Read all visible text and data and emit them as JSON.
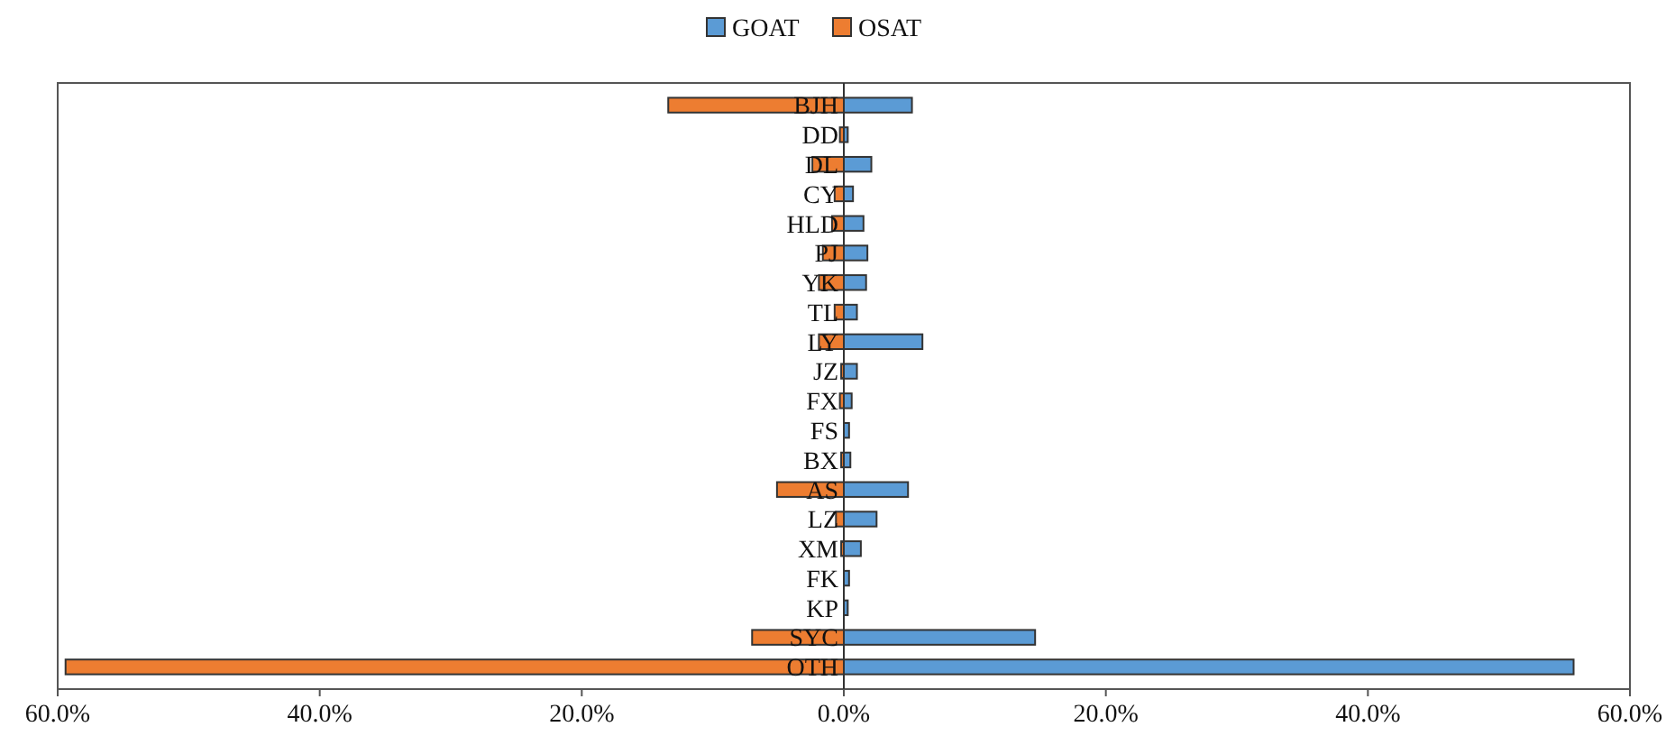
{
  "chart_data": {
    "type": "bar",
    "orientation": "horizontal",
    "categories": [
      "BJH",
      "DD",
      "DL",
      "CY",
      "HLD",
      "PJ",
      "YK",
      "TL",
      "LY",
      "JZ",
      "FX",
      "FS",
      "BX",
      "AS",
      "LZ",
      "XM",
      "FK",
      "KP",
      "SYC",
      "OTH"
    ],
    "series": [
      {
        "name": "GOAT",
        "color": "#5b9bd5",
        "values": [
          5.2,
          0.3,
          2.1,
          0.7,
          1.5,
          1.8,
          1.7,
          1.0,
          6.0,
          1.0,
          0.6,
          0.4,
          0.5,
          4.9,
          2.5,
          1.3,
          0.4,
          0.3,
          14.6,
          55.7
        ]
      },
      {
        "name": "OSAT",
        "color": "#ed7d31",
        "values": [
          -13.4,
          -0.3,
          -2.4,
          -0.7,
          -0.9,
          -1.6,
          -1.9,
          -0.7,
          -1.9,
          -0.2,
          -0.3,
          null,
          -0.2,
          -5.1,
          -0.6,
          -0.2,
          null,
          null,
          -7.0,
          -59.4
        ]
      }
    ],
    "xlim": [
      -60,
      60
    ],
    "xticks": [
      {
        "value": -60,
        "label": "60.0%"
      },
      {
        "value": -40,
        "label": "40.0%"
      },
      {
        "value": -20,
        "label": "20.0%"
      },
      {
        "value": 0,
        "label": "0.0%"
      },
      {
        "value": 20,
        "label": "20.0%"
      },
      {
        "value": 40,
        "label": "40.0%"
      },
      {
        "value": 60,
        "label": "60.0%"
      }
    ],
    "stacked": true,
    "grid": false,
    "legend": "top"
  }
}
